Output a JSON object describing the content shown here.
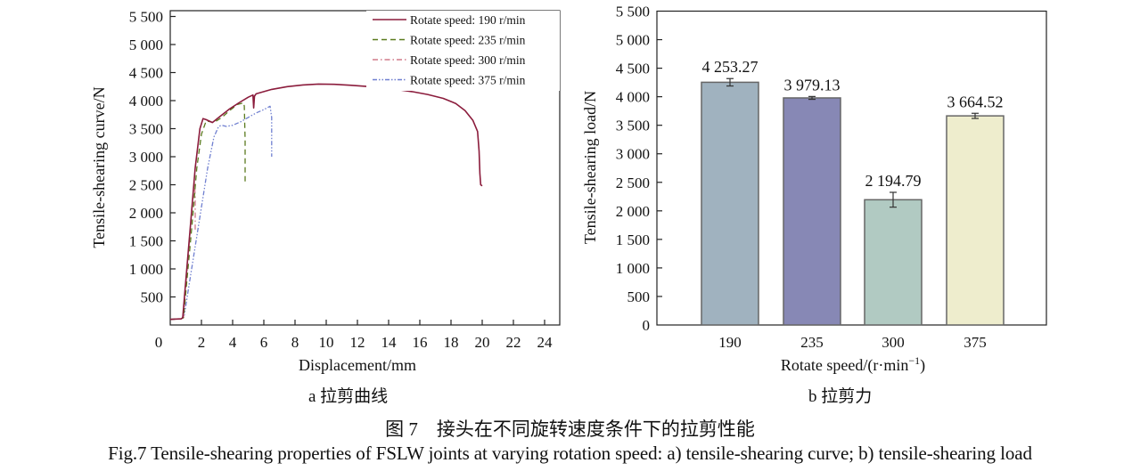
{
  "chart_data": [
    {
      "id": "a",
      "type": "line",
      "subtitle": "a 拉剪曲线",
      "xlabel": "Displacement/mm",
      "ylabel": "Tensile-shearing curve/N",
      "xlim": [
        0,
        25
      ],
      "ylim": [
        0,
        5500
      ],
      "xticks": [
        0,
        2,
        4,
        6,
        8,
        10,
        12,
        14,
        16,
        18,
        20,
        22,
        24
      ],
      "xtick_labels": [
        "0",
        "2",
        "4",
        "6",
        "8",
        "10",
        "12",
        "14",
        "16",
        "18",
        "20",
        "22",
        "24"
      ],
      "yticks": [
        500,
        1000,
        1500,
        2000,
        2500,
        3000,
        3500,
        4000,
        4500,
        5000,
        5500
      ],
      "ytick_labels": [
        "500",
        "1 000",
        "1 500",
        "2 000",
        "2 500",
        "3 000",
        "3 500",
        "4 000",
        "4 500",
        "5 000",
        "5 500"
      ],
      "grid": false,
      "legend_position": "upper right",
      "series": [
        {
          "name": "Rotate speed: 190 r/min",
          "color": "#8b1c3c",
          "dash": "solid",
          "x": [
            0,
            0.7,
            0.8,
            1.0,
            1.3,
            1.6,
            1.9,
            2.1,
            2.3,
            2.7,
            3.2,
            3.8,
            4.4,
            5.0,
            5.3,
            5.35,
            5.4,
            5.5,
            6.5,
            7.5,
            8.5,
            9.5,
            10.5,
            11.5,
            12.5,
            13.5,
            14.5,
            15.5,
            16.5,
            17.5,
            18.3,
            18.9,
            19.4,
            19.7,
            19.8,
            19.85,
            19.9,
            20.0
          ],
          "y": [
            100,
            110,
            130,
            800,
            1800,
            2800,
            3500,
            3680,
            3660,
            3610,
            3720,
            3850,
            3960,
            4060,
            4100,
            3870,
            4080,
            4120,
            4200,
            4250,
            4280,
            4295,
            4290,
            4275,
            4255,
            4230,
            4200,
            4160,
            4110,
            4040,
            3950,
            3820,
            3650,
            3450,
            3100,
            2700,
            2500,
            2480
          ]
        },
        {
          "name": "Rotate speed: 235 r/min",
          "color": "#5a7a1e",
          "dash": "6,4",
          "x": [
            0,
            0.7,
            0.85,
            1.1,
            1.4,
            1.7,
            2.0,
            2.3,
            2.6,
            2.8,
            3.3,
            3.8,
            4.3,
            4.7,
            4.75,
            4.8,
            4.8
          ],
          "y": [
            100,
            110,
            130,
            900,
            1800,
            2800,
            3400,
            3640,
            3620,
            3610,
            3700,
            3820,
            3930,
            3960,
            3900,
            3300,
            2550
          ]
        },
        {
          "name": "Rotate speed: 300 r/min",
          "color": "#d07a8a",
          "dash": "6,3,1.5,3",
          "x": [
            0,
            0.7,
            0.85,
            1.0,
            1.2,
            1.4,
            1.55,
            1.6,
            1.6
          ],
          "y": [
            100,
            110,
            130,
            700,
            1400,
            2100,
            2550,
            2300,
            1700
          ]
        },
        {
          "name": "Rotate speed: 375 r/min",
          "color": "#6f7fd0",
          "dash": "5,2,1.5,2,1.5,2",
          "x": [
            0,
            0.7,
            0.9,
            1.2,
            1.6,
            2.0,
            2.4,
            2.8,
            3.1,
            3.3,
            3.6,
            4.0,
            4.5,
            5.0,
            5.5,
            6.0,
            6.4,
            6.5,
            6.5
          ],
          "y": [
            100,
            110,
            180,
            700,
            1400,
            2100,
            2800,
            3350,
            3540,
            3560,
            3540,
            3560,
            3620,
            3700,
            3780,
            3840,
            3900,
            3700,
            3000
          ]
        }
      ]
    },
    {
      "id": "b",
      "type": "bar",
      "subtitle": "b 拉剪力",
      "xlabel": "Rotate speed/(r·min",
      "xlabel_sup": "−1",
      "xlabel_end": ")",
      "ylabel": "Tensile-shearing load/N",
      "categories": [
        "190",
        "235",
        "300",
        "375"
      ],
      "values": [
        4253.27,
        3979.13,
        2194.79,
        3664.52
      ],
      "value_labels": [
        "4 253.27",
        "3 979.13",
        "2 194.79",
        "3 664.52"
      ],
      "errors": [
        65,
        25,
        130,
        45
      ],
      "colors": [
        "#a0b2bf",
        "#8788b5",
        "#b1cac2",
        "#eeedcd"
      ],
      "ylim": [
        0,
        5500
      ],
      "yticks": [
        0,
        500,
        1000,
        1500,
        2000,
        2500,
        3000,
        3500,
        4000,
        4500,
        5000,
        5500
      ],
      "ytick_labels": [
        "0",
        "500",
        "1 000",
        "1 500",
        "2 000",
        "2 500",
        "3 000",
        "3 500",
        "4 000",
        "4 500",
        "5 000",
        "5 500"
      ],
      "grid": false
    }
  ],
  "captions": {
    "sub_a": "a  拉剪曲线",
    "sub_b": "b  拉剪力",
    "figure_cn": "图 7　接头在不同旋转速度条件下的拉剪性能",
    "figure_en": "Fig.7 Tensile-shearing properties of FSLW joints at varying rotation speed: a) tensile-shearing curve; b) tensile-shearing load"
  }
}
